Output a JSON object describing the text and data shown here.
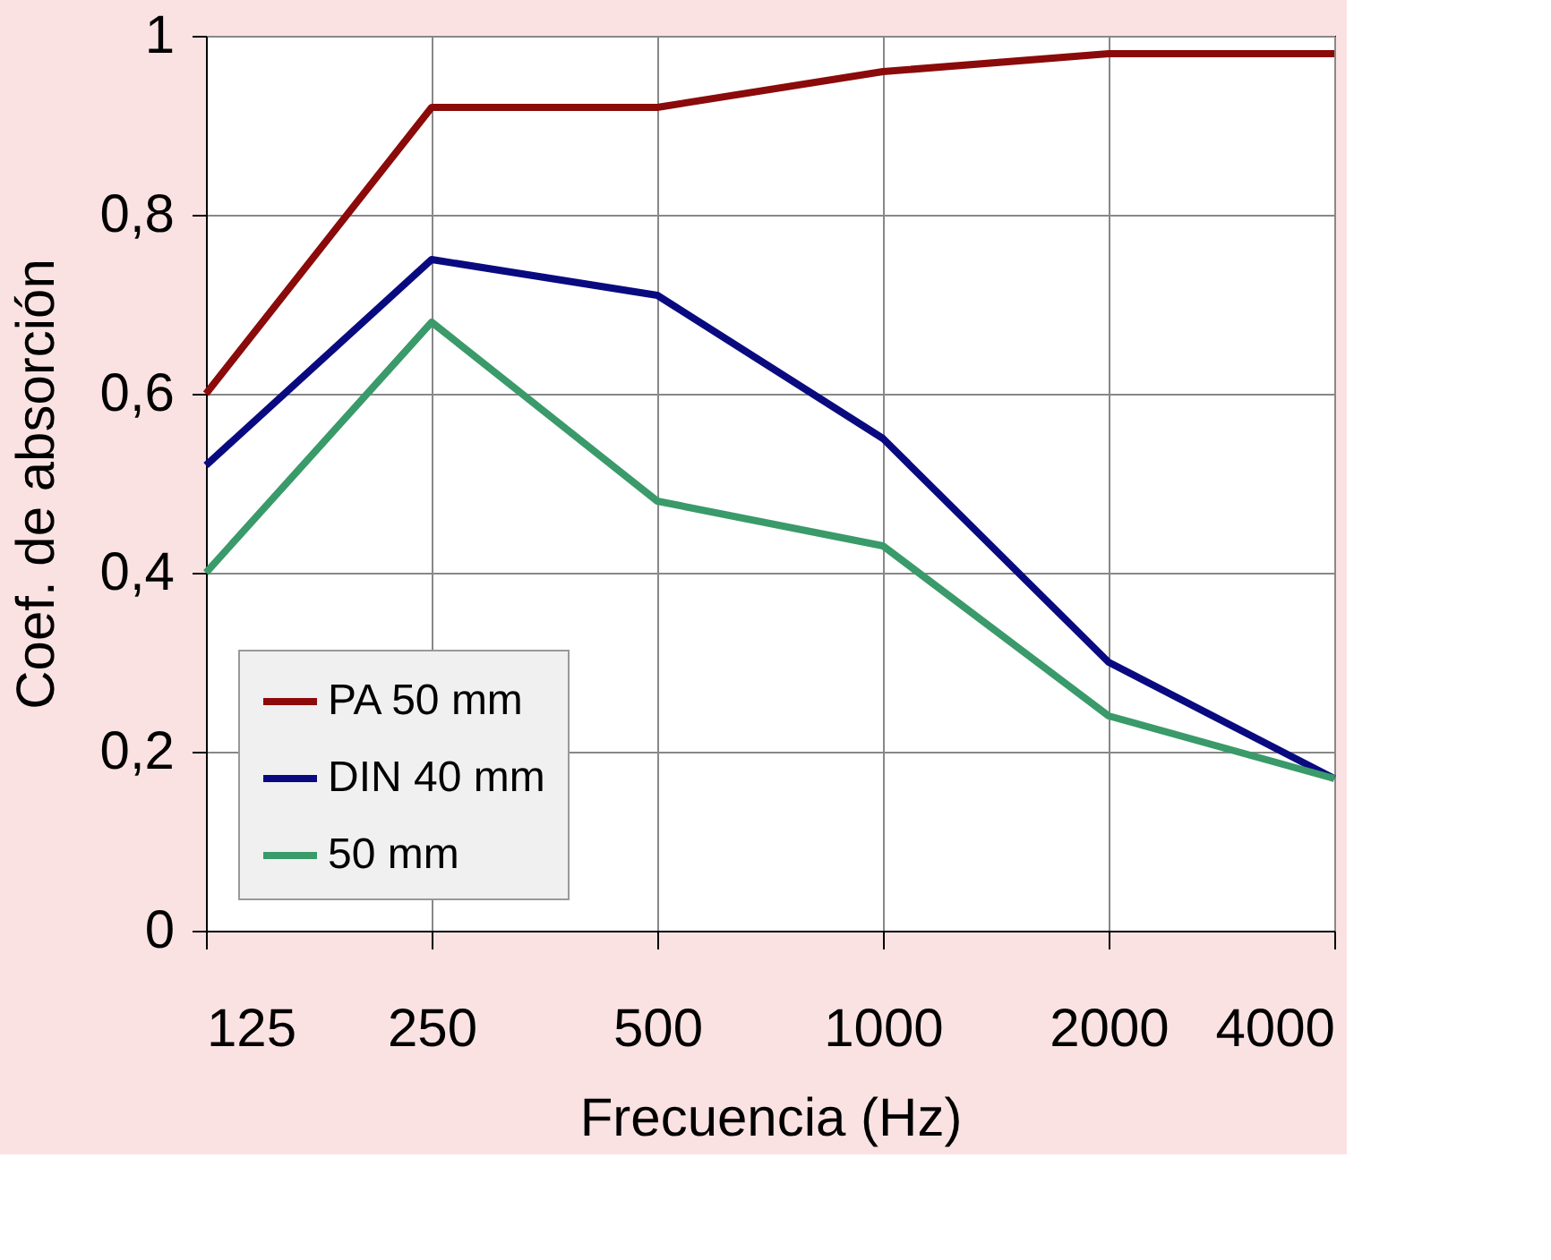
{
  "chart_data": {
    "type": "line",
    "xlabel": "Frecuencia (Hz)",
    "ylabel": "Coef. de absorción",
    "categories": [
      "125",
      "250",
      "500",
      "1000",
      "2000",
      "4000"
    ],
    "series": [
      {
        "name": "PA 50 mm",
        "color": "#8b0a0a",
        "values": [
          0.6,
          0.92,
          0.92,
          0.96,
          0.98,
          0.98
        ]
      },
      {
        "name": "DIN 40 mm",
        "color": "#0a0a80",
        "values": [
          0.52,
          0.75,
          0.71,
          0.55,
          0.3,
          0.17
        ]
      },
      {
        "name": "50 mm",
        "color": "#3a9a6a",
        "values": [
          0.4,
          0.68,
          0.48,
          0.43,
          0.24,
          0.17
        ]
      }
    ],
    "ylim": [
      0,
      1
    ],
    "yticks": [
      0,
      {
        "value": 0.2,
        "label": "0,2"
      },
      {
        "value": 0.4,
        "label": "0,4"
      },
      {
        "value": 0.6,
        "label": "0,6"
      },
      {
        "value": 0.8,
        "label": "0,8"
      },
      1
    ],
    "grid": true,
    "legend": "bottom left",
    "marker": "none",
    "line_style": "solid"
  }
}
